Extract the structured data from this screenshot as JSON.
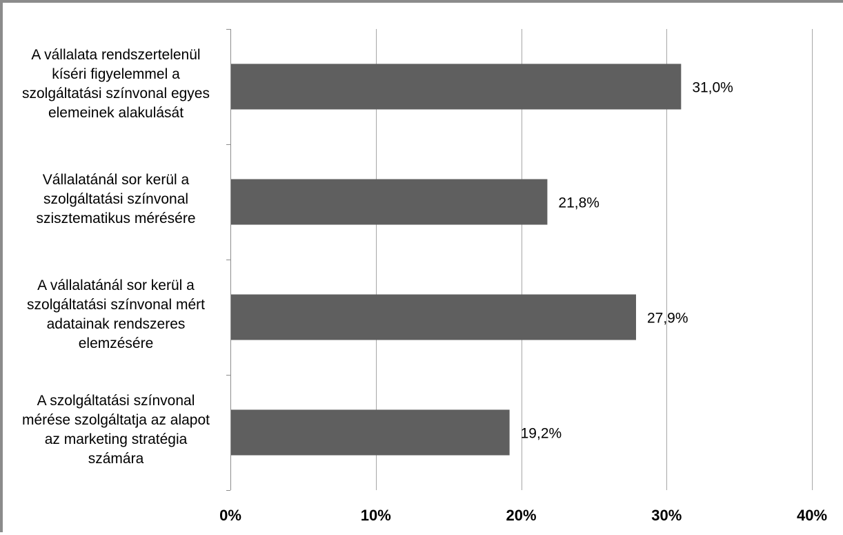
{
  "chart_data": {
    "type": "bar",
    "orientation": "horizontal",
    "categories": [
      [
        "A vállalata rendszertelenül",
        "kíséri figyelemmel a",
        "szolgáltatási színvonal egyes",
        "elemeinek alakulását"
      ],
      [
        "Vállalatánál sor kerül a",
        "szolgáltatási színvonal",
        "szisztematikus mérésére"
      ],
      [
        "A vállalatánál sor kerül a",
        "szolgáltatási színvonal mért",
        "adatainak rendszeres",
        "elemzésére"
      ],
      [
        "A szolgáltatási színvonal",
        "mérése szolgáltatja az alapot",
        "az marketing stratégia",
        "számára"
      ]
    ],
    "values": [
      31.0,
      21.8,
      27.9,
      19.2
    ],
    "value_labels": [
      "31,0%",
      "21,8%",
      "27,9%",
      "19,2%"
    ],
    "xlim": [
      0,
      40
    ],
    "x_ticks": [
      0,
      10,
      20,
      30,
      40
    ],
    "x_tick_labels": [
      "0%",
      "10%",
      "20%",
      "30%",
      "40%"
    ],
    "grid": "vertical",
    "legend": "none",
    "colors": {
      "bar": "#5f5f5f",
      "grid": "#a6a6a6",
      "axis": "#8c8c8c",
      "frame": "#8c8c8c"
    }
  }
}
